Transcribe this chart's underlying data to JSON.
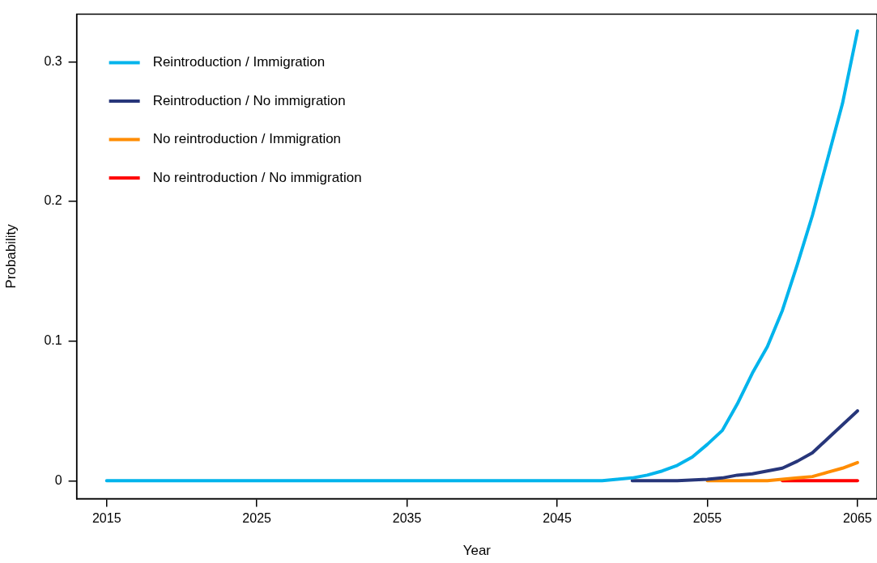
{
  "chart_data": {
    "type": "line",
    "xlabel": "Year",
    "ylabel": "Probability",
    "xlim": [
      2013,
      2066.3
    ],
    "ylim": [
      -0.0128,
      0.334
    ],
    "xticks": [
      2015,
      2025,
      2035,
      2045,
      2055,
      2065
    ],
    "yticks": [
      0,
      0.1,
      0.2,
      0.3
    ],
    "grid": false,
    "legend": "top left",
    "marker": "none",
    "line_style": "solid",
    "series": [
      {
        "name": "Reintroduction / Immigration",
        "color": "#00b4ec",
        "x": [
          2015,
          2048,
          2049,
          2050,
          2051,
          2052,
          2053,
          2054,
          2055,
          2056,
          2057,
          2058,
          2059,
          2060,
          2061,
          2062,
          2063,
          2064,
          2065
        ],
        "values": [
          0,
          0,
          0.001,
          0.002,
          0.004,
          0.007,
          0.011,
          0.017,
          0.026,
          0.036,
          0.055,
          0.077,
          0.096,
          0.122,
          0.155,
          0.19,
          0.23,
          0.27,
          0.322
        ]
      },
      {
        "name": "Reintroduction / No immigration",
        "color": "#27367a",
        "x": [
          2050,
          2053,
          2055,
          2056,
          2057,
          2058,
          2059,
          2060,
          2061,
          2062,
          2063,
          2064,
          2065
        ],
        "values": [
          0,
          0,
          0.001,
          0.002,
          0.004,
          0.005,
          0.007,
          0.009,
          0.014,
          0.02,
          0.03,
          0.04,
          0.05
        ]
      },
      {
        "name": "No reintroduction / Immigration",
        "color": "#ff8c00",
        "x": [
          2055,
          2059,
          2060,
          2061,
          2062,
          2063,
          2064,
          2065
        ],
        "values": [
          0,
          0,
          0.001,
          0.002,
          0.003,
          0.006,
          0.009,
          0.013
        ]
      },
      {
        "name": "No reintroduction / No immigration",
        "color": "#ff0000",
        "x": [
          2060,
          2065
        ],
        "values": [
          0,
          0
        ]
      }
    ]
  }
}
